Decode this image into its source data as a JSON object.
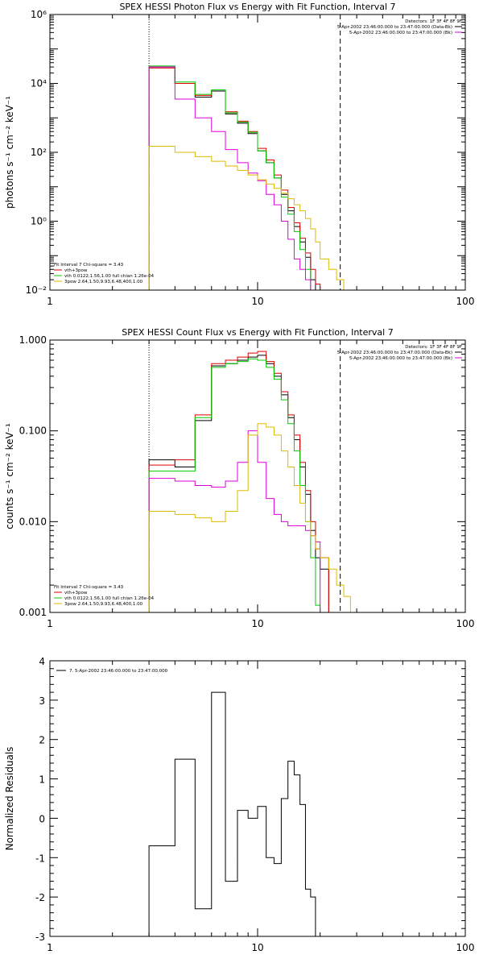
{
  "chart_data": [
    {
      "type": "line",
      "title": "SPEX HESSI Photon Flux vs Energy with Fit Function, Interval 7",
      "ylabel": "photons s⁻¹ cm⁻² keV⁻¹",
      "xscale": "log",
      "yscale": "log",
      "xlim": [
        1,
        100
      ],
      "ylim": [
        0.01,
        1000000
      ],
      "xticks": [
        "1",
        "10",
        "100"
      ],
      "yticks": [
        "10⁻²",
        "10⁰",
        "10²",
        "10⁴",
        "10⁶"
      ],
      "bin_edges": [
        3,
        4,
        5,
        6,
        7,
        8,
        9,
        10,
        11,
        12,
        13,
        14,
        15,
        16,
        17,
        18,
        19,
        20,
        22,
        24,
        26,
        28,
        30,
        33,
        36
      ],
      "vlines": [
        {
          "x": 3,
          "style": "dotted"
        },
        {
          "x": 25,
          "style": "dashed"
        }
      ],
      "info": [
        "Detectors: 1F 3F 4F 8F 9F",
        "5-Apr-2002 23:46:00.000 to 23:47:00.000 (Data-Bk)",
        "5-Apr-2002 23:46:00.000 to 23:47:00.000 (Bk)"
      ],
      "fit_info": [
        "Fit Interval 7   Chi-square = 3.43",
        "vth+3pow",
        "vth 0.0122,1.56,1.00  full chian 1.26e-04",
        "3pow 2.64,1.50,9.93,6.48,400,1.00"
      ],
      "series": [
        {
          "name": "Data-Bk",
          "color": "#000000",
          "values": [
            30000,
            10000,
            4000,
            6000,
            1300,
            700,
            350,
            110,
            50,
            18,
            6,
            2,
            0.7,
            0.25,
            0.09,
            0.02
          ]
        },
        {
          "name": "vth+3pow",
          "color": "#dd0000",
          "values": [
            28000,
            10000,
            4500,
            6500,
            1500,
            800,
            400,
            130,
            60,
            22,
            8,
            2.5,
            0.9,
            0.32,
            0.12,
            0.04,
            0.015,
            0.01
          ]
        },
        {
          "name": "vth",
          "color": "#00cc00",
          "values": [
            32000,
            11000,
            4800,
            6500,
            1400,
            750,
            380,
            110,
            50,
            18,
            5,
            1.6,
            0.5,
            0.15,
            0.04,
            0.01
          ]
        },
        {
          "name": "Bk",
          "color": "#dd00dd",
          "values": [
            30000,
            3500,
            1000,
            400,
            120,
            50,
            25,
            15,
            6,
            3,
            1,
            0.3,
            0.08,
            0.04,
            0.02,
            0.01,
            0.01
          ]
        },
        {
          "name": "3pow",
          "color": "#ddbb00",
          "values": [
            150,
            100,
            75,
            55,
            40,
            30,
            22,
            16,
            12,
            9,
            6.5,
            4.5,
            3,
            2,
            1.2,
            0.6,
            0.25,
            0.08,
            0.04,
            0.02,
            0.01
          ]
        }
      ]
    },
    {
      "type": "line",
      "title": "SPEX HESSI Count Flux vs Energy with Fit Function, Interval 7",
      "ylabel": "counts s⁻¹ cm⁻² keV⁻¹",
      "xscale": "log",
      "yscale": "log",
      "xlim": [
        1,
        100
      ],
      "ylim": [
        0.001,
        1.0
      ],
      "xticks": [
        "1",
        "10",
        "100"
      ],
      "yticks": [
        "0.001",
        "0.010",
        "0.100",
        "1.000"
      ],
      "bin_edges": [
        3,
        4,
        5,
        6,
        7,
        8,
        9,
        10,
        11,
        12,
        13,
        14,
        15,
        16,
        17,
        18,
        19,
        20,
        22,
        24,
        26,
        28,
        30,
        33,
        36
      ],
      "vlines": [
        {
          "x": 3,
          "style": "dotted"
        },
        {
          "x": 25,
          "style": "dashed"
        }
      ],
      "info": [
        "Detectors: 1F 3F 4F 8F 9F",
        "5-Apr-2002 23:46:00.000 to 23:47:00.000 (Data-Bk)",
        "5-Apr-2002 23:46:00.000 to 23:47:00.000 (Bk)"
      ],
      "fit_info": [
        "Fit Interval 7   Chi-square = 3.43",
        "vth+3pow",
        "vth 0.0122,1.56,1.00  full chian 1.26e-04",
        "3pow 2.64,1.50,9.93,6.48,400,1.00"
      ],
      "series": [
        {
          "name": "Data-Bk",
          "color": "#000000",
          "values": [
            0.048,
            0.04,
            0.13,
            0.52,
            0.55,
            0.6,
            0.65,
            0.68,
            0.55,
            0.4,
            0.25,
            0.14,
            0.08,
            0.04,
            0.02,
            0.008,
            0.004,
            0.003
          ]
        },
        {
          "name": "vth+3pow",
          "color": "#dd0000",
          "values": [
            0.042,
            0.048,
            0.15,
            0.55,
            0.6,
            0.65,
            0.72,
            0.75,
            0.58,
            0.43,
            0.27,
            0.15,
            0.09,
            0.045,
            0.022,
            0.01,
            0.005,
            0.004
          ]
        },
        {
          "name": "vth",
          "color": "#00cc00",
          "values": [
            0.036,
            0.036,
            0.14,
            0.5,
            0.55,
            0.58,
            0.62,
            0.6,
            0.5,
            0.37,
            0.22,
            0.12,
            0.06,
            0.025,
            0.01,
            0.004,
            0.0012
          ]
        },
        {
          "name": "Bk",
          "color": "#dd00dd",
          "values": [
            0.03,
            0.028,
            0.025,
            0.024,
            0.028,
            0.045,
            0.1,
            0.045,
            0.018,
            0.012,
            0.01,
            0.009,
            0.009,
            0.009,
            0.008,
            0.007,
            0.006
          ]
        },
        {
          "name": "3pow",
          "color": "#ddbb00",
          "values": [
            0.013,
            0.012,
            0.011,
            0.01,
            0.013,
            0.022,
            0.09,
            0.12,
            0.11,
            0.09,
            0.06,
            0.04,
            0.025,
            0.016,
            0.01,
            0.007,
            0.005,
            0.004,
            0.003,
            0.002,
            0.0015
          ]
        }
      ]
    },
    {
      "type": "line",
      "title": "",
      "ylabel": "Normalized Residuals",
      "xscale": "log",
      "yscale": "linear",
      "xlim": [
        1,
        100
      ],
      "ylim": [
        -3,
        4
      ],
      "xticks": [
        "1",
        "10",
        "100"
      ],
      "yticks": [
        "-3",
        "-2",
        "-1",
        "0",
        "1",
        "2",
        "3",
        "4"
      ],
      "bin_edges": [
        3,
        4,
        5,
        6,
        7,
        8,
        9,
        10,
        11,
        12,
        13,
        14,
        15,
        16,
        17,
        18,
        19,
        20,
        22,
        24,
        26
      ],
      "legend": "7.  5-Apr-2002 23:46:00.000 to 23:47:00.000",
      "series": [
        {
          "name": "7.  5-Apr-2002 23:46:00.000 to 23:47:00.000",
          "color": "#000000",
          "values": [
            -0.7,
            1.5,
            -2.3,
            3.2,
            -1.6,
            0.2,
            0.0,
            0.3,
            -1.0,
            -1.15,
            0.5,
            1.45,
            1.1,
            0.35,
            -1.8,
            -2.0
          ]
        }
      ]
    }
  ]
}
